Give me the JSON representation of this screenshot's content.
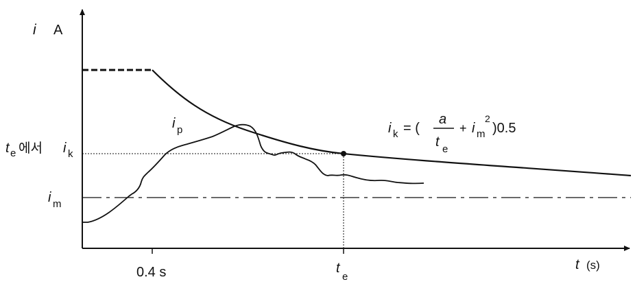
{
  "labels": {
    "y_axis_var": "i",
    "y_axis_unit": "A",
    "x_axis_var": "t",
    "x_axis_unit": "(s)",
    "x_tick_04": "0.4 s",
    "x_tick_te_var": "t",
    "x_tick_te_sub": "e",
    "curve_ip_var": "i",
    "curve_ip_sub": "p",
    "im_var": "i",
    "im_sub": "m",
    "ik_var": "i",
    "ik_sub": "k",
    "te_prefix_var": "t",
    "te_prefix_sub": "e",
    "te_prefix_text": "에서",
    "formula_lhs_var": "i",
    "formula_lhs_sub": "k",
    "formula_eq": "= (",
    "formula_num": "a",
    "formula_den_var": "t",
    "formula_den_sub": "e",
    "formula_plus": "+",
    "formula_im_var": "i",
    "formula_im_sub": "m",
    "formula_im_sup": "2",
    "formula_close": ")0.5"
  }
}
